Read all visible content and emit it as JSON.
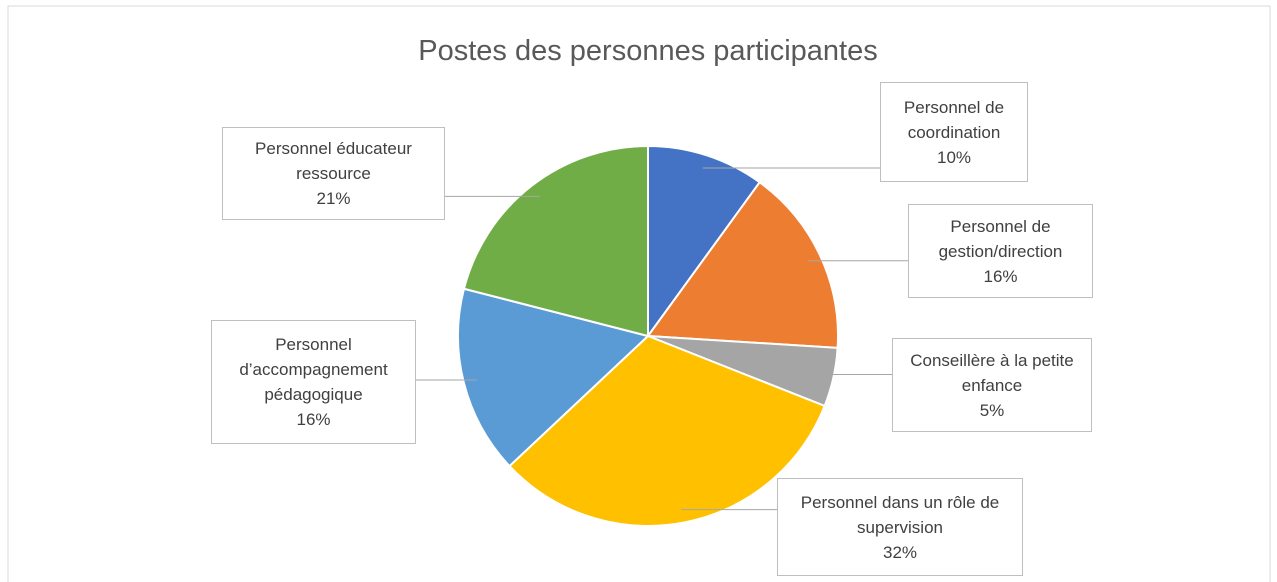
{
  "chart_data": {
    "type": "pie",
    "title": "Postes des personnes participantes",
    "categories": [
      "Personnel de coordination",
      "Personnel de gestion/direction",
      "Conseillère à la petite enfance",
      "Personnel dans un rôle de supervision",
      "Personnel d’accompagnement pédagogique",
      "Personnel éducateur ressource"
    ],
    "values": [
      10,
      16,
      5,
      32,
      16,
      21
    ],
    "value_labels": [
      "10%",
      "16%",
      "5%",
      "32%",
      "16%",
      "21%"
    ],
    "colors": [
      "#4472c4",
      "#ed7d31",
      "#a5a5a5",
      "#ffc000",
      "#5b9bd5",
      "#70ad47"
    ]
  }
}
